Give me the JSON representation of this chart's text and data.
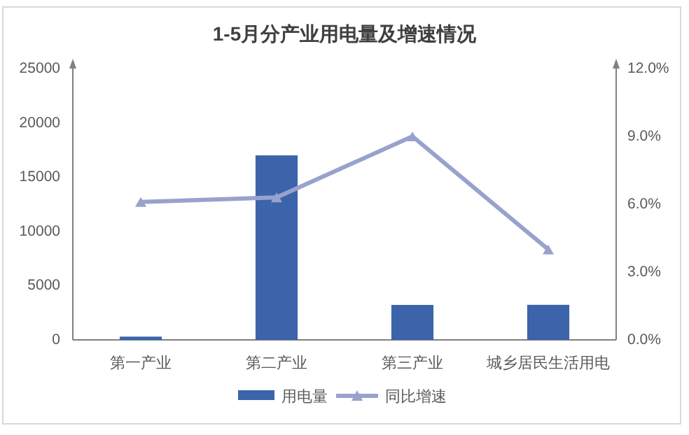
{
  "chart_data": {
    "type": "bar",
    "title": "1-5月分产业用电量及增速情况",
    "categories": [
      "第一产业",
      "第二产业",
      "第三产业",
      "城乡居民生活用电"
    ],
    "series": [
      {
        "name": "用电量",
        "color": "#3c64aa",
        "values": [
          300,
          17000,
          3220,
          3230
        ]
      },
      {
        "name": "同比增速",
        "type": "line",
        "axis": "y2",
        "color": "#98a2cc",
        "marker": "triangle",
        "values": [
          6.1,
          6.3,
          9.0,
          4.0
        ]
      }
    ],
    "ylim": [
      0,
      25000
    ],
    "yticks": [
      0,
      5000,
      10000,
      15000,
      20000,
      25000
    ],
    "y2lim": [
      0,
      12
    ],
    "y2ticks": [
      {
        "value": 0,
        "label": "0.0%"
      },
      {
        "value": 3,
        "label": "3.0%"
      },
      {
        "value": 6,
        "label": "6.0%"
      },
      {
        "value": 9,
        "label": "9.0%"
      },
      {
        "value": 12,
        "label": "12.0%"
      }
    ],
    "grid": false,
    "legend": "bottom"
  }
}
